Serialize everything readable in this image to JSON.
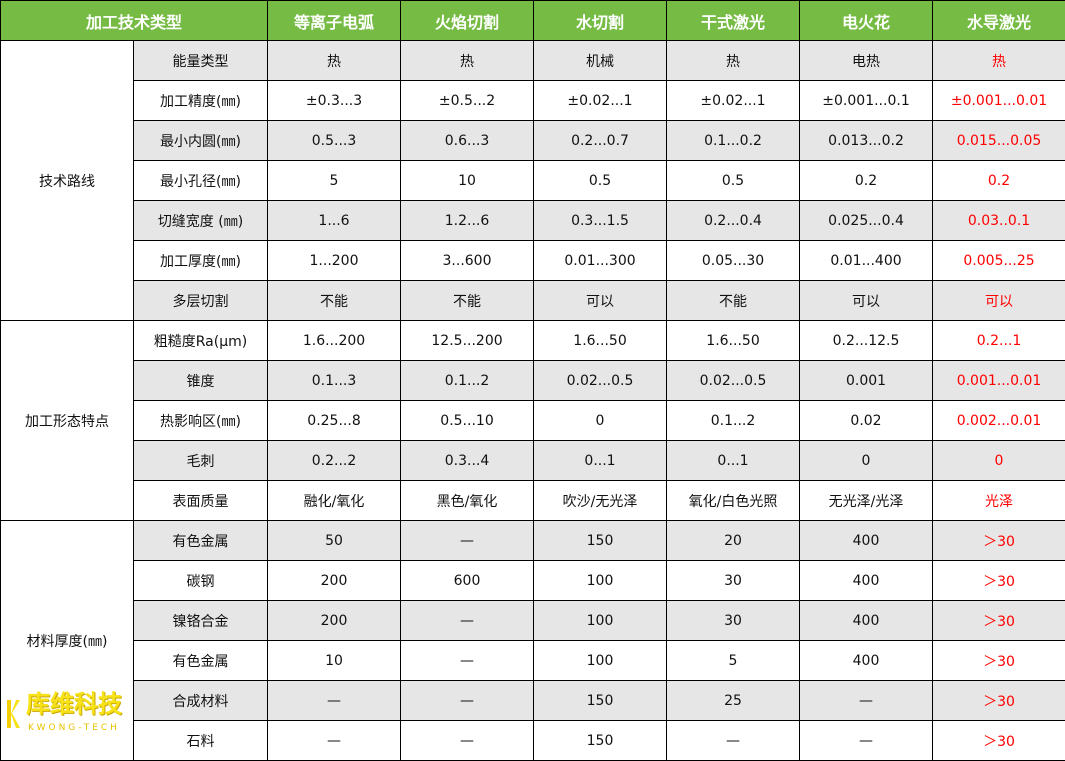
{
  "header": [
    "加工技术类型",
    "等离子电弧",
    "火焰切割",
    "水切割",
    "干式激光",
    "电火花",
    "水导激光"
  ],
  "colors": {
    "header_bg": "#76bc44",
    "highlight": "#ff0000",
    "row_alt": "#e6e6e6",
    "logo": "#f7e21a"
  },
  "groups": [
    {
      "label": "技术路线",
      "rows": [
        {
          "param": "能量类型",
          "values": [
            "热",
            "热",
            "机械",
            "热",
            "电热",
            "热"
          ]
        },
        {
          "param": "加工精度(㎜)",
          "values": [
            "±0.3...3",
            "±0.5...2",
            "±0.02...1",
            "±0.02...1",
            "±0.001...0.1",
            "±0.001...0.01"
          ]
        },
        {
          "param": "最小内圆(㎜)",
          "values": [
            "0.5...3",
            "0.6...3",
            "0.2...0.7",
            "0.1...0.2",
            "0.013...0.2",
            "0.015...0.05"
          ]
        },
        {
          "param": "最小孔径(㎜)",
          "values": [
            "5",
            "10",
            "0.5",
            "0.5",
            "0.2",
            "0.2"
          ]
        },
        {
          "param": "切缝宽度  (㎜)",
          "values": [
            "1...6",
            "1.2...6",
            "0.3...1.5",
            "0.2...0.4",
            "0.025...0.4",
            "0.03..0.1"
          ]
        },
        {
          "param": "加工厚度(㎜)",
          "values": [
            "1...200",
            "3...600",
            "0.01...300",
            "0.05...30",
            "0.01...400",
            "0.005...25"
          ]
        },
        {
          "param": "多层切割",
          "values": [
            "不能",
            "不能",
            "可以",
            "不能",
            "可以",
            "可以"
          ]
        }
      ]
    },
    {
      "label": "加工形态特点",
      "rows": [
        {
          "param": "粗糙度Ra(μm)",
          "values": [
            "1.6...200",
            "12.5...200",
            "1.6...50",
            "1.6...50",
            "0.2...12.5",
            "0.2...1"
          ]
        },
        {
          "param": "锥度",
          "values": [
            "0.1...3",
            "0.1...2",
            "0.02...0.5",
            "0.02...0.5",
            "0.001",
            "0.001...0.01"
          ]
        },
        {
          "param": "热影响区(㎜)",
          "values": [
            "0.25...8",
            "0.5...10",
            "0",
            "0.1...2",
            "0.02",
            "0.002...0.01"
          ]
        },
        {
          "param": "毛刺",
          "values": [
            "0.2...2",
            "0.3...4",
            "0...1",
            "0...1",
            "0",
            "0"
          ]
        },
        {
          "param": "表面质量",
          "values": [
            "融化/氧化",
            "黑色/氧化",
            "吹沙/无光泽",
            "氧化/白色光照",
            "无光泽/光泽",
            "光泽"
          ]
        }
      ]
    },
    {
      "label": "材料厚度(㎜)",
      "rows": [
        {
          "param": "有色金属",
          "values": [
            "50",
            "—",
            "150",
            "20",
            "400",
            "＞30"
          ]
        },
        {
          "param": "碳钢",
          "values": [
            "200",
            "600",
            "100",
            "30",
            "400",
            "＞30"
          ]
        },
        {
          "param": "镍铬合金",
          "values": [
            "200",
            "—",
            "100",
            "30",
            "400",
            "＞30"
          ]
        },
        {
          "param": "有色金属",
          "values": [
            "10",
            "—",
            "100",
            "5",
            "400",
            "＞30"
          ]
        },
        {
          "param": "合成材料",
          "values": [
            "—",
            "—",
            "150",
            "25",
            "—",
            "＞30"
          ]
        },
        {
          "param": "石料",
          "values": [
            "—",
            "—",
            "150",
            "—",
            "—",
            "＞30"
          ]
        }
      ]
    }
  ],
  "logo": {
    "cn": "库维科技",
    "en": "KWONG-TECH"
  }
}
